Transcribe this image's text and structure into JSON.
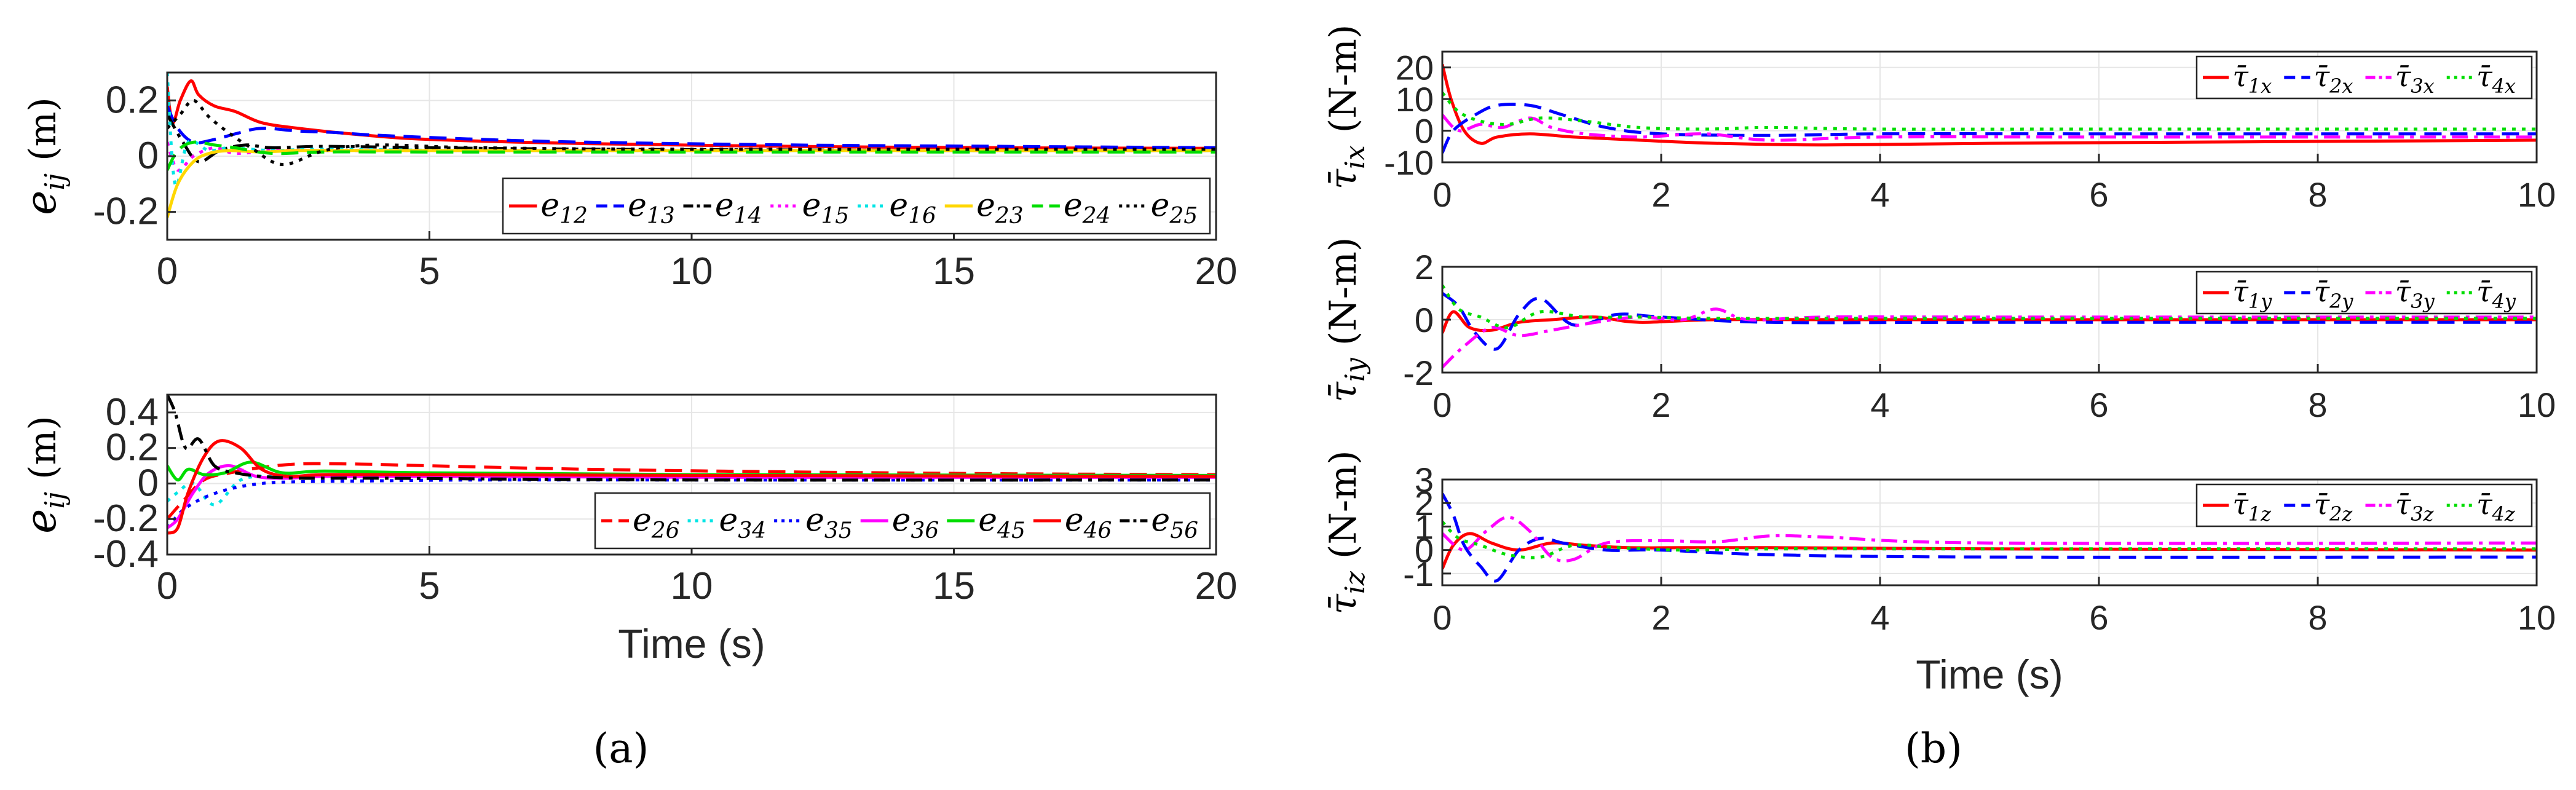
{
  "chart_data": [
    {
      "id": "a-top",
      "type": "line",
      "ylabel_main": "e",
      "ylabel_sub": "ij",
      "ylabel_unit": "(m)",
      "xlabel": "",
      "xlim": [
        0,
        20
      ],
      "ylim": [
        -0.3,
        0.3
      ],
      "xticks": [
        "0",
        "5",
        "10",
        "15",
        "20"
      ],
      "xtick_values": [
        0,
        5,
        10,
        15,
        20
      ],
      "yticks": [
        "-0.2",
        "0",
        "0.2"
      ],
      "ytick_values": [
        -0.2,
        0,
        0.2
      ],
      "legend_position": "bottom-right",
      "series": [
        {
          "name": "e",
          "sub": "12",
          "color": "#ff0000",
          "dash": "solid",
          "x": [
            0,
            0.1,
            0.25,
            0.45,
            0.6,
            0.9,
            1.3,
            1.8,
            2.5,
            3.5,
            5,
            8,
            12,
            16,
            20
          ],
          "y": [
            0.25,
            0.12,
            0.2,
            0.27,
            0.22,
            0.18,
            0.16,
            0.12,
            0.1,
            0.08,
            0.06,
            0.045,
            0.035,
            0.03,
            0.028
          ]
        },
        {
          "name": "e",
          "sub": "13",
          "color": "#0000ff",
          "dash": "dash",
          "x": [
            0,
            0.2,
            0.5,
            0.9,
            1.3,
            1.8,
            2.5,
            3.2,
            4,
            6,
            8,
            12,
            16,
            20
          ],
          "y": [
            0.18,
            0.1,
            0.05,
            0.06,
            0.08,
            0.1,
            0.09,
            0.085,
            0.075,
            0.06,
            0.05,
            0.04,
            0.035,
            0.03
          ]
        },
        {
          "name": "e",
          "sub": "14",
          "color": "#000000",
          "dash": "dashdot",
          "x": [
            0,
            0.3,
            0.6,
            1,
            1.5,
            2,
            3,
            5,
            8,
            12,
            16,
            20
          ],
          "y": [
            0.15,
            0.05,
            -0.02,
            0.02,
            0.04,
            0.03,
            0.035,
            0.03,
            0.025,
            0.022,
            0.02,
            0.02
          ]
        },
        {
          "name": "e",
          "sub": "15",
          "color": "#ff00ff",
          "dash": "dot",
          "x": [
            0,
            0.2,
            0.5,
            0.9,
            1.3,
            2,
            3,
            5,
            10,
            20
          ],
          "y": [
            0.05,
            -0.05,
            0,
            0.03,
            0.01,
            0.02,
            0.02,
            0.02,
            0.02,
            0.02
          ]
        },
        {
          "name": "e",
          "sub": "16",
          "color": "#00e5e5",
          "dash": "dot",
          "x": [
            0,
            0.15,
            0.4,
            0.8,
            1.2,
            2,
            3,
            6,
            12,
            20
          ],
          "y": [
            0.3,
            -0.1,
            0.05,
            0.02,
            0.03,
            0.02,
            0.025,
            0.02,
            0.02,
            0.02
          ]
        },
        {
          "name": "e",
          "sub": "23",
          "color": "#ffd700",
          "dash": "solid",
          "x": [
            0,
            0.2,
            0.5,
            0.8,
            1.2,
            1.8,
            2.5,
            4,
            8,
            20
          ],
          "y": [
            -0.22,
            -0.1,
            -0.02,
            0.01,
            0.02,
            0.015,
            0.02,
            0.02,
            0.02,
            0.02
          ]
        },
        {
          "name": "e",
          "sub": "24",
          "color": "#00dd00",
          "dash": "dash",
          "x": [
            0,
            0.2,
            0.5,
            0.9,
            1.3,
            2,
            3,
            5,
            10,
            20
          ],
          "y": [
            -0.05,
            0.02,
            0.05,
            0.04,
            0.03,
            0.01,
            0.015,
            0.015,
            0.015,
            0.015
          ]
        },
        {
          "name": "e",
          "sub": "25",
          "color": "#000000",
          "dash": "dot",
          "x": [
            0,
            0.25,
            0.5,
            0.8,
            1.2,
            1.6,
            2.2,
            3,
            4,
            6,
            10,
            20
          ],
          "y": [
            0.1,
            0.15,
            0.2,
            0.14,
            0.08,
            0.03,
            -0.03,
            0.02,
            0.04,
            0.03,
            0.025,
            0.025
          ]
        }
      ]
    },
    {
      "id": "a-bottom",
      "type": "line",
      "ylabel_main": "e",
      "ylabel_sub": "ij",
      "ylabel_unit": "(m)",
      "xlabel": "Time (s)",
      "xlim": [
        0,
        20
      ],
      "ylim": [
        -0.4,
        0.5
      ],
      "xticks": [
        "0",
        "5",
        "10",
        "15",
        "20"
      ],
      "xtick_values": [
        0,
        5,
        10,
        15,
        20
      ],
      "yticks": [
        "-0.4",
        "-0.2",
        "0",
        "0.2",
        "0.4"
      ],
      "ytick_values": [
        -0.4,
        -0.2,
        0,
        0.2,
        0.4
      ],
      "legend_position": "bottom-right",
      "series": [
        {
          "name": "e",
          "sub": "26",
          "color": "#ff0000",
          "dash": "dash",
          "x": [
            0,
            0.3,
            0.7,
            1.2,
            1.8,
            2.5,
            3.5,
            5,
            8,
            12,
            16,
            20
          ],
          "y": [
            -0.2,
            -0.1,
            0.02,
            0.06,
            0.09,
            0.11,
            0.11,
            0.1,
            0.08,
            0.065,
            0.055,
            0.05
          ]
        },
        {
          "name": "e",
          "sub": "34",
          "color": "#00e5e5",
          "dash": "dot",
          "x": [
            0,
            0.2,
            0.5,
            0.9,
            1.4,
            2,
            3,
            5,
            10,
            20
          ],
          "y": [
            -0.1,
            -0.05,
            0,
            -0.12,
            0.02,
            0.04,
            0.04,
            0.04,
            0.04,
            0.04
          ]
        },
        {
          "name": "e",
          "sub": "35",
          "color": "#0000ff",
          "dash": "dot",
          "x": [
            0,
            0.3,
            0.7,
            1.2,
            1.8,
            2.5,
            4,
            6,
            10,
            20
          ],
          "y": [
            -0.25,
            -0.15,
            -0.08,
            -0.03,
            0,
            0.01,
            0.015,
            0.02,
            0.02,
            0.02
          ]
        },
        {
          "name": "e",
          "sub": "36",
          "color": "#ff00ff",
          "dash": "solid",
          "x": [
            0,
            0.2,
            0.5,
            0.8,
            1.2,
            1.7,
            2.3,
            3,
            5,
            10,
            20
          ],
          "y": [
            -0.25,
            -0.2,
            -0.05,
            0.06,
            0.1,
            0.04,
            0.03,
            0.04,
            0.04,
            0.035,
            0.035
          ]
        },
        {
          "name": "e",
          "sub": "45",
          "color": "#00dd00",
          "dash": "solid",
          "x": [
            0,
            0.2,
            0.4,
            0.7,
            1.1,
            1.6,
            2.2,
            3,
            5,
            10,
            20
          ],
          "y": [
            0.1,
            0.02,
            0.08,
            0.05,
            0.06,
            0.12,
            0.06,
            0.07,
            0.06,
            0.05,
            0.045
          ]
        },
        {
          "name": "e",
          "sub": "46",
          "color": "#ff0000",
          "dash": "solid",
          "x": [
            0,
            0.2,
            0.4,
            0.7,
            1,
            1.4,
            1.8,
            2.3,
            3,
            5,
            10,
            20
          ],
          "y": [
            -0.28,
            -0.25,
            -0.05,
            0.15,
            0.24,
            0.2,
            0.08,
            0.04,
            0.05,
            0.05,
            0.045,
            0.04
          ]
        },
        {
          "name": "e",
          "sub": "56",
          "color": "#000000",
          "dash": "dashdot",
          "x": [
            0,
            0.15,
            0.35,
            0.6,
            0.9,
            1.3,
            1.8,
            2.5,
            4,
            10,
            20
          ],
          "y": [
            0.5,
            0.4,
            0.2,
            0.25,
            0.1,
            0.06,
            0.04,
            0.03,
            0.03,
            0.02,
            0.02
          ]
        }
      ]
    },
    {
      "id": "b-top",
      "type": "line",
      "ylabel_main": "τ̄",
      "ylabel_sub": "ix",
      "ylabel_unit": "(N-m)",
      "xlabel": "",
      "xlim": [
        0,
        10
      ],
      "ylim": [
        -10,
        25
      ],
      "xticks": [
        "0",
        "2",
        "4",
        "6",
        "8",
        "10"
      ],
      "xtick_values": [
        0,
        2,
        4,
        6,
        8,
        10
      ],
      "yticks": [
        "-10",
        "0",
        "10",
        "20"
      ],
      "ytick_values": [
        -10,
        0,
        10,
        20
      ],
      "legend_position": "top-right",
      "series": [
        {
          "name": "τ̄",
          "sub": "1x",
          "color": "#ff0000",
          "dash": "solid",
          "x": [
            0,
            0.08,
            0.2,
            0.35,
            0.5,
            0.8,
            1.2,
            1.8,
            2.5,
            3.5,
            5,
            10
          ],
          "y": [
            21,
            10,
            0,
            -4,
            -2,
            -1,
            -2,
            -3,
            -4,
            -4.5,
            -4,
            -3
          ]
        },
        {
          "name": "τ̄",
          "sub": "2x",
          "color": "#0000ff",
          "dash": "dash",
          "x": [
            0,
            0.1,
            0.3,
            0.5,
            0.8,
            1.1,
            1.5,
            2,
            3,
            4,
            6,
            10
          ],
          "y": [
            -7,
            0,
            5,
            8,
            8,
            5,
            1,
            -1,
            -1.5,
            -1,
            -1,
            -1
          ]
        },
        {
          "name": "τ̄",
          "sub": "3x",
          "color": "#ff00ff",
          "dash": "dashdot",
          "x": [
            0,
            0.15,
            0.35,
            0.55,
            0.8,
            1,
            1.3,
            1.8,
            2.4,
            3,
            4,
            6,
            10
          ],
          "y": [
            5,
            0,
            2,
            1,
            4,
            1,
            -1,
            -2,
            -1,
            -3,
            -2,
            -2,
            -2
          ]
        },
        {
          "name": "τ̄",
          "sub": "4x",
          "color": "#00dd00",
          "dash": "dot",
          "x": [
            0,
            0.15,
            0.35,
            0.6,
            0.9,
            1.3,
            1.8,
            2.4,
            3,
            4,
            6,
            10
          ],
          "y": [
            12,
            6,
            3,
            2,
            4,
            3,
            1,
            0.5,
            1,
            0.5,
            0.5,
            0.5
          ]
        }
      ]
    },
    {
      "id": "b-mid",
      "type": "line",
      "ylabel_main": "τ̄",
      "ylabel_sub": "iy",
      "ylabel_unit": "(N-m)",
      "xlabel": "",
      "xlim": [
        0,
        10
      ],
      "ylim": [
        -2,
        2
      ],
      "xticks": [
        "0",
        "2",
        "4",
        "6",
        "8",
        "10"
      ],
      "xtick_values": [
        0,
        2,
        4,
        6,
        8,
        10
      ],
      "yticks": [
        "-2",
        "0",
        "2"
      ],
      "ytick_values": [
        -2,
        0,
        2
      ],
      "legend_position": "top-right",
      "series": [
        {
          "name": "τ̄",
          "sub": "1y",
          "color": "#ff0000",
          "dash": "solid",
          "x": [
            0,
            0.1,
            0.25,
            0.45,
            0.7,
            1,
            1.4,
            1.8,
            2.5,
            4,
            10
          ],
          "y": [
            -0.5,
            0.3,
            -0.3,
            -0.4,
            -0.1,
            0,
            0.1,
            -0.1,
            0,
            0,
            0
          ]
        },
        {
          "name": "τ̄",
          "sub": "2y",
          "color": "#0000ff",
          "dash": "dash",
          "x": [
            0,
            0.15,
            0.3,
            0.5,
            0.7,
            0.9,
            1.2,
            1.6,
            2,
            3,
            5,
            10
          ],
          "y": [
            1,
            0.5,
            -0.5,
            -1.1,
            0.2,
            0.8,
            -0.2,
            0.2,
            0.1,
            -0.1,
            -0.1,
            -0.1
          ]
        },
        {
          "name": "τ̄",
          "sub": "3y",
          "color": "#ff00ff",
          "dash": "dashdot",
          "x": [
            0,
            0.2,
            0.45,
            0.7,
            1,
            1.4,
            1.8,
            2.2,
            2.5,
            2.8,
            3.5,
            5,
            10
          ],
          "y": [
            -1.8,
            -1,
            -0.3,
            -0.6,
            -0.4,
            -0.1,
            0.1,
            0,
            0.4,
            0,
            0.1,
            0.1,
            0.1
          ]
        },
        {
          "name": "τ̄",
          "sub": "4y",
          "color": "#00dd00",
          "dash": "dot",
          "x": [
            0,
            0.15,
            0.35,
            0.6,
            0.9,
            1.3,
            1.8,
            2.5,
            4,
            10
          ],
          "y": [
            1.3,
            0.4,
            0.1,
            -0.3,
            0.3,
            0.1,
            0.1,
            0.05,
            0.05,
            0.05
          ]
        }
      ]
    },
    {
      "id": "b-bottom",
      "type": "line",
      "ylabel_main": "τ̄",
      "ylabel_sub": "iz",
      "ylabel_unit": "(N-m)",
      "xlabel": "Time (s)",
      "xlim": [
        0,
        10
      ],
      "ylim": [
        -1.5,
        3
      ],
      "xticks": [
        "0",
        "2",
        "4",
        "6",
        "8",
        "10"
      ],
      "xtick_values": [
        0,
        2,
        4,
        6,
        8,
        10
      ],
      "yticks": [
        "-1",
        "0",
        "1",
        "2",
        "3"
      ],
      "ytick_values": [
        -1,
        0,
        1,
        2,
        3
      ],
      "legend_position": "top-right",
      "series": [
        {
          "name": "τ̄",
          "sub": "1z",
          "color": "#ff0000",
          "dash": "solid",
          "x": [
            0,
            0.1,
            0.25,
            0.45,
            0.7,
            1,
            1.3,
            1.7,
            2.2,
            3,
            5,
            10
          ],
          "y": [
            -0.8,
            0.2,
            0.7,
            0.3,
            0,
            0.3,
            0.2,
            0.1,
            0.1,
            0.1,
            0.05,
            0
          ]
        },
        {
          "name": "τ̄",
          "sub": "2z",
          "color": "#0000ff",
          "dash": "dash",
          "x": [
            0,
            0.1,
            0.2,
            0.35,
            0.5,
            0.7,
            0.9,
            1.1,
            1.5,
            2,
            3,
            5,
            10
          ],
          "y": [
            2.4,
            1.5,
            0.2,
            -0.7,
            -1.3,
            0,
            0.5,
            0.3,
            0,
            0,
            -0.2,
            -0.3,
            -0.3
          ]
        },
        {
          "name": "τ̄",
          "sub": "3z",
          "color": "#ff00ff",
          "dash": "dashdot",
          "x": [
            0,
            0.2,
            0.4,
            0.6,
            0.8,
            1,
            1.2,
            1.5,
            2,
            2.5,
            3,
            3.5,
            5,
            10
          ],
          "y": [
            0.7,
            0,
            0.8,
            1.4,
            0.8,
            -0.3,
            -0.4,
            0.3,
            0.4,
            0.35,
            0.6,
            0.55,
            0.3,
            0.3
          ]
        },
        {
          "name": "τ̄",
          "sub": "4z",
          "color": "#00dd00",
          "dash": "dot",
          "x": [
            0,
            0.15,
            0.35,
            0.6,
            0.9,
            1.2,
            1.6,
            2.2,
            3,
            5,
            10
          ],
          "y": [
            1.2,
            0.5,
            0.2,
            -0.2,
            -0.3,
            0.2,
            0.1,
            0,
            0.05,
            0.05,
            0.05
          ]
        }
      ]
    }
  ],
  "panel_labels": {
    "a": "(a)",
    "b": "(b)"
  }
}
